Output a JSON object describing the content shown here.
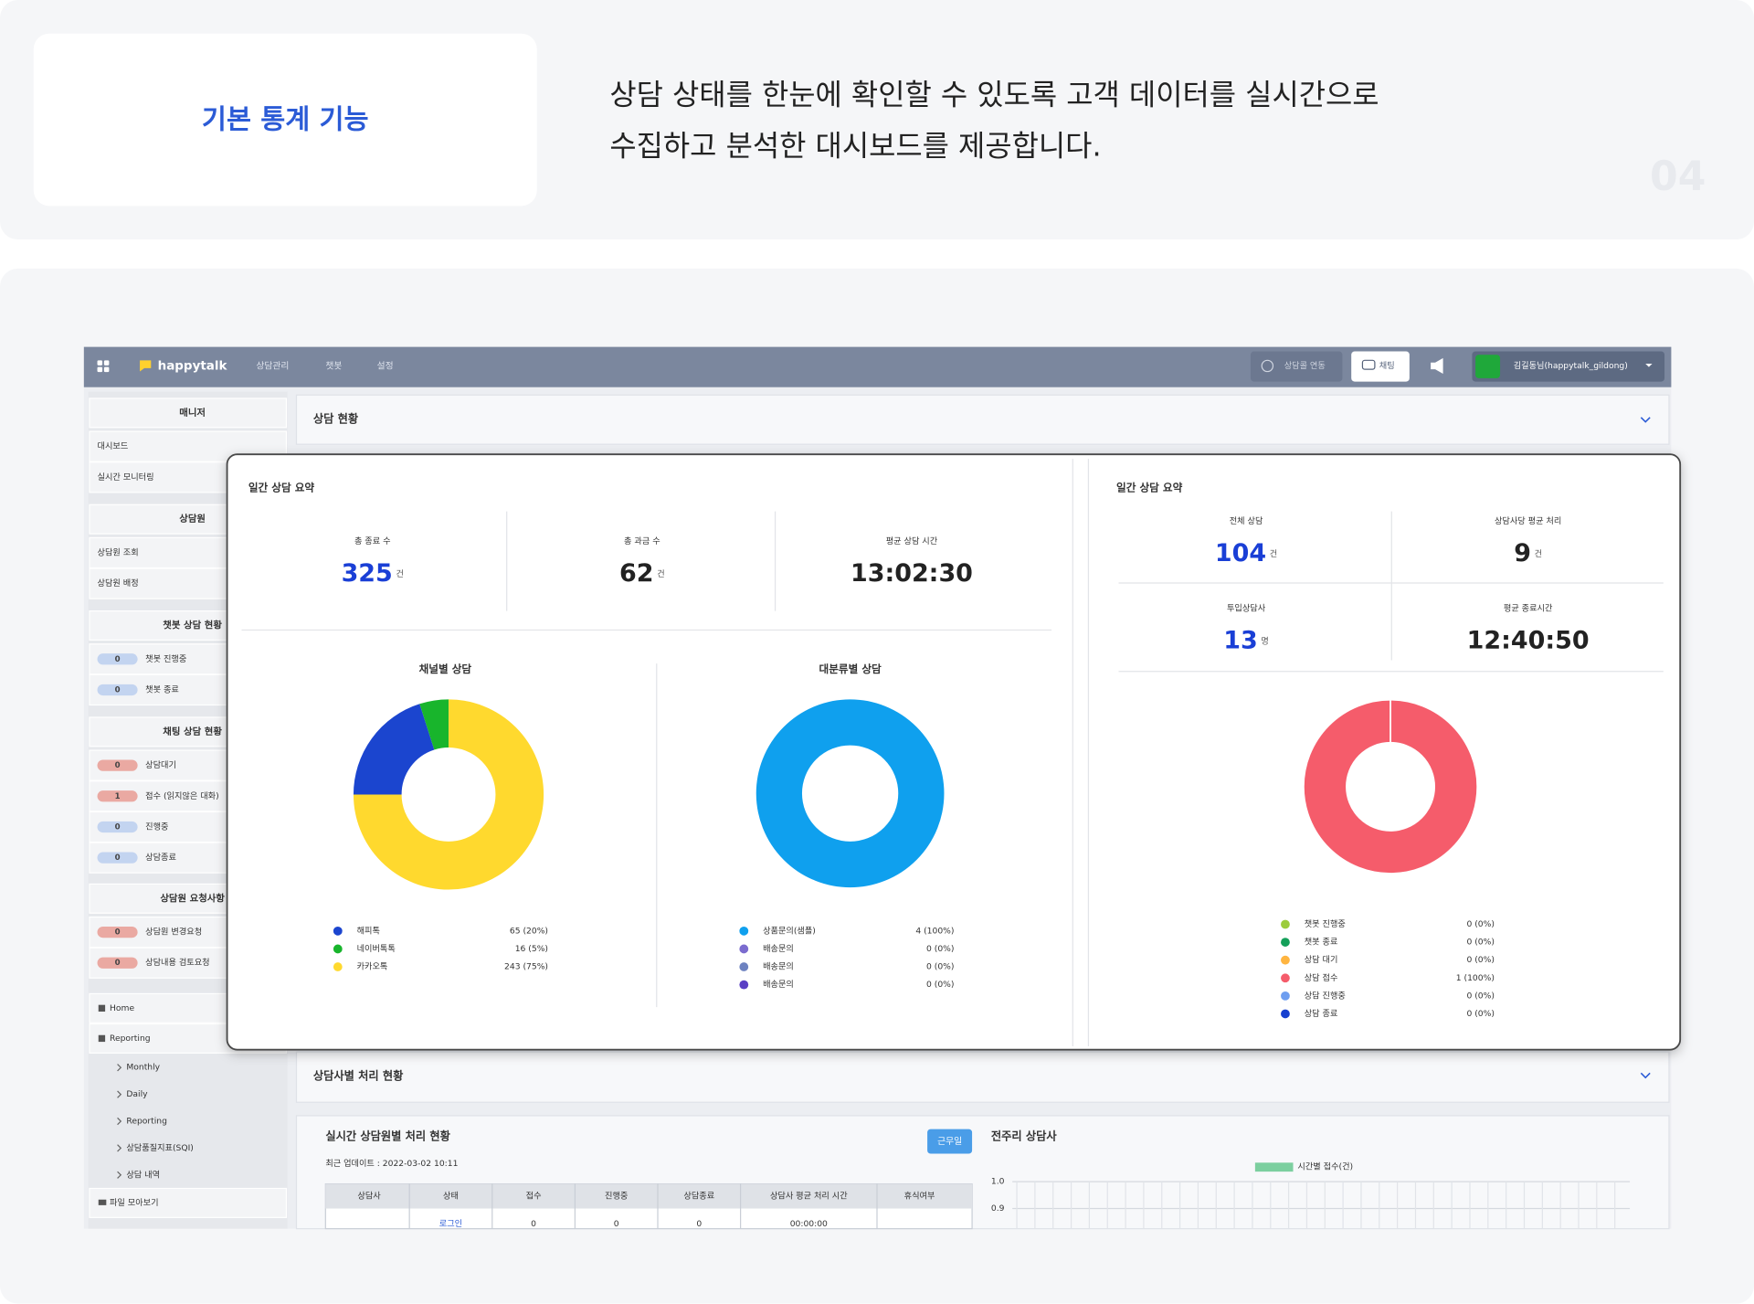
{
  "header": {
    "title": "기본 통계 기능",
    "description": [
      "상담 상태를 한눈에 확인할 수 있도록 고객 데이터를 실시간으로",
      "수집하고 분석한 대시보드를 제공합니다."
    ],
    "page_number": "04"
  },
  "topbar": {
    "logo": "happytalk",
    "menu": [
      "상담관리",
      "챗봇",
      "설정"
    ],
    "call_button": "상담콜 연동",
    "chat_button": "채팅",
    "user": "김길동님(happytalk_gildong)"
  },
  "sidebar": {
    "groups": [
      {
        "title": "매니저",
        "items": [
          {
            "label": "대시보드"
          },
          {
            "label": "실시간 모니터링"
          }
        ]
      },
      {
        "title": "상담원",
        "items": [
          {
            "label": "상담원 조회"
          },
          {
            "label": "상담원 배정"
          }
        ]
      },
      {
        "title": "챗봇 상담 현황",
        "items": [
          {
            "count": 0,
            "label": "챗봇 진행중",
            "color": "#c3d4f0"
          },
          {
            "count": 0,
            "label": "챗봇 종료",
            "color": "#c3d4f0"
          }
        ]
      },
      {
        "title": "채팅 상담 현황",
        "items": [
          {
            "count": 0,
            "label": "상담대기",
            "color": "#eaa9a2"
          },
          {
            "count": 1,
            "label": "접수 (읽지않은 대화)",
            "color": "#eaa9a2"
          },
          {
            "count": 0,
            "label": "진행중",
            "color": "#c3d4f0"
          },
          {
            "count": 0,
            "label": "상담종료",
            "color": "#c3d4f0"
          }
        ]
      },
      {
        "title": "상담원 요청사항",
        "items": [
          {
            "count": 0,
            "label": "상담원 변경요청",
            "color": "#eaa9a2"
          },
          {
            "count": 0,
            "label": "상담내용 검토요청",
            "color": "#eaa9a2"
          }
        ]
      }
    ],
    "nav": [
      "Home",
      "Reporting"
    ],
    "subnav": [
      "Monthly",
      "Daily",
      "Reporting",
      "상담품질지표(SQI)",
      "상담 내역"
    ],
    "files": "파일 모아보기"
  },
  "main": {
    "section1": "상담 현황",
    "section2": "상담사별 처리 현황",
    "realtime": {
      "title": "실시간 상담원별 처리 현황",
      "updated": "최근 업데이트 : 2022-03-02 10:11",
      "button": "근무일",
      "columns": [
        "상담사",
        "상태",
        "접수",
        "진행중",
        "상담종료",
        "상담사 평균 처리 시간",
        "휴식여부"
      ],
      "row": [
        "로그인",
        0,
        0,
        0,
        "00:00:00"
      ]
    },
    "weekly": {
      "title": "전주리 상담사",
      "legend": "시간별 접수(건)",
      "yticks": [
        "1.0",
        "0.9"
      ]
    }
  },
  "daily_summary": {
    "title": "일간 상담 요약",
    "stats": [
      {
        "label": "총 종료 수",
        "value": 325,
        "unit": "건"
      },
      {
        "label": "총 과금 수",
        "value": 62,
        "unit": "건"
      },
      {
        "label": "평균 상담 시간",
        "value": "13:02:30"
      }
    ],
    "charts": [
      {
        "title": "채널별 상담",
        "items": [
          {
            "name": "해피톡",
            "value": 65,
            "label": "65 (20%)",
            "color": "#1b45cf"
          },
          {
            "name": "네이버톡톡",
            "value": 16,
            "label": "16 (5%)",
            "color": "#18b52c"
          },
          {
            "name": "카카오톡",
            "value": 243,
            "label": "243 (75%)",
            "color": "#ffd92e"
          }
        ]
      },
      {
        "title": "대분류별 상담",
        "items": [
          {
            "name": "상품문의(샘플)",
            "value": 4,
            "label": "4 (100%)",
            "color": "#0fa0ee"
          },
          {
            "name": "배송문의",
            "value": 0,
            "label": "0 (0%)",
            "color": "#7b6ccf"
          },
          {
            "name": "배송문의",
            "value": 0,
            "label": "0 (0%)",
            "color": "#6d82c0"
          },
          {
            "name": "배송문의",
            "value": 0,
            "label": "0 (0%)",
            "color": "#5a3fc4"
          }
        ]
      }
    ]
  },
  "daily_summary_right": {
    "title": "일간 상담 요약",
    "stats": [
      {
        "label": "전체 상담",
        "value": 104,
        "unit": "건"
      },
      {
        "label": "상담사당 평균 처리",
        "value": 9,
        "unit": "건"
      },
      {
        "label": "투입상담사",
        "value": 13,
        "unit": "명"
      },
      {
        "label": "평균 종료시간",
        "value": "12:40:50"
      }
    ],
    "chart": {
      "items": [
        {
          "name": "챗봇 진행중",
          "value": 0,
          "label": "0 (0%)",
          "color": "#9ccc3c"
        },
        {
          "name": "챗봇 종료",
          "value": 0,
          "label": "0 (0%)",
          "color": "#14a05a"
        },
        {
          "name": "상담 대기",
          "value": 0,
          "label": "0 (0%)",
          "color": "#ffb540"
        },
        {
          "name": "상담 접수",
          "value": 1,
          "label": "1 (100%)",
          "color": "#f55c6b"
        },
        {
          "name": "상담 진행중",
          "value": 0,
          "label": "0 (0%)",
          "color": "#6e9ef0"
        },
        {
          "name": "상담 종료",
          "value": 0,
          "label": "0 (0%)",
          "color": "#1740d0"
        }
      ]
    }
  }
}
